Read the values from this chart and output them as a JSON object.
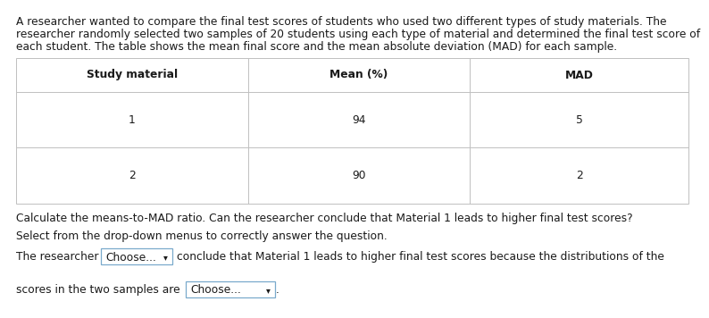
{
  "line1": "A researcher wanted to compare the final test scores of students who used two different types of study materials. The",
  "line2": "researcher randomly selected two samples of 20 students using each type of material and determined the final test score of",
  "line3": "each student. The table shows the mean final score and the mean absolute deviation (MAD) for each sample.",
  "table_headers": [
    "Study material",
    "Mean (%)",
    "MAD"
  ],
  "table_rows": [
    [
      "1",
      "94",
      "5"
    ],
    [
      "2",
      "90",
      "2"
    ]
  ],
  "question": "Calculate the means-to-MAD ratio. Can the researcher conclude that Material 1 leads to higher final test scores?",
  "instruction": "Select from the drop-down menus to correctly answer the question.",
  "sentence_part1": "The researcher",
  "dropdown1_text": "Choose...",
  "dropdown1_arrow": "▾",
  "sentence_part2": "conclude that Material 1 leads to higher final test scores because the distributions of the",
  "sentence_part3": "scores in the two samples are",
  "dropdown2_text": "Choose...",
  "dropdown2_arrow": "▾",
  "bg_color": "#ffffff",
  "text_color": "#1a1a1a",
  "border_color": "#c0c0c0",
  "dropdown_border": "#7aaacc",
  "font_size": 8.8
}
